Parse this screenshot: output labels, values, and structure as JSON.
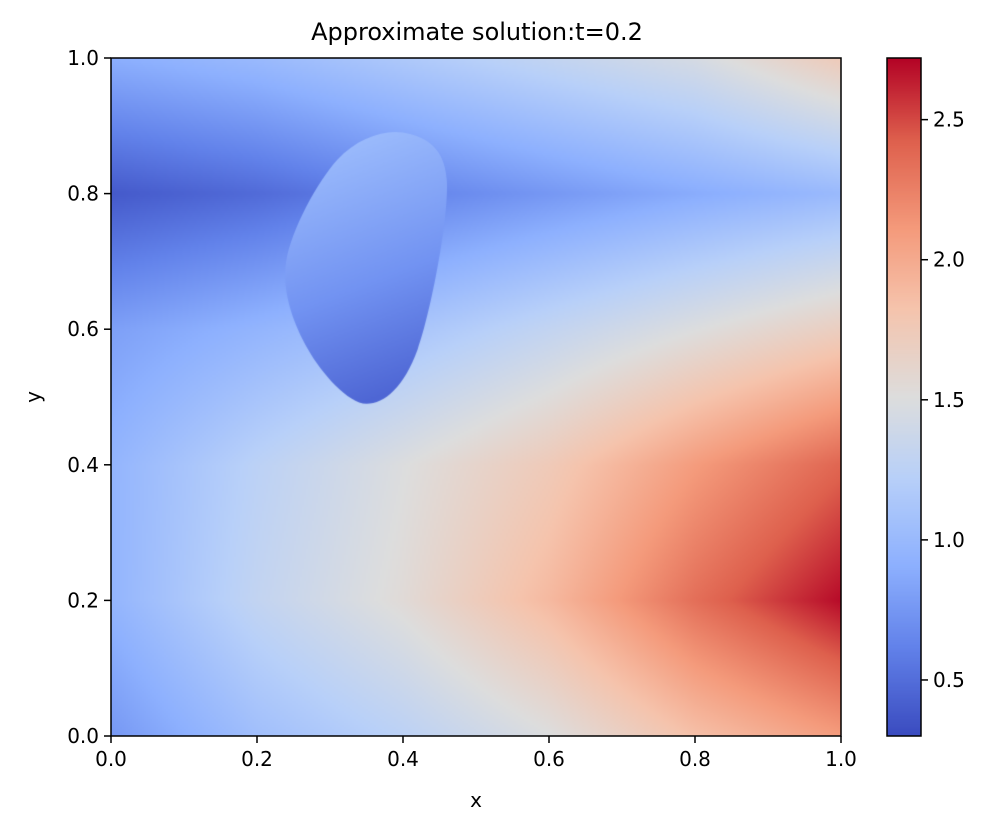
{
  "chart_data": {
    "type": "heatmap",
    "title": "Approximate solution:t=0.2",
    "xlabel": "x",
    "ylabel": "y",
    "xlim": [
      0.0,
      1.0
    ],
    "ylim": [
      0.0,
      1.0
    ],
    "x_ticks": [
      "0.0",
      "0.2",
      "0.4",
      "0.6",
      "0.8",
      "1.0"
    ],
    "y_ticks": [
      "0.0",
      "0.2",
      "0.4",
      "0.6",
      "0.8",
      "1.0"
    ],
    "colormap": "coolwarm",
    "colorbar": {
      "range": [
        0.3,
        2.72
      ],
      "ticks": [
        "0.5",
        "1.0",
        "1.5",
        "2.0",
        "2.5"
      ]
    },
    "grid": false,
    "field_samples": {
      "x": [
        0.0,
        0.2,
        0.4,
        0.6,
        0.8,
        1.0
      ],
      "y": [
        0.0,
        0.2,
        0.4,
        0.6,
        0.8,
        1.0
      ],
      "values": [
        [
          0.75,
          1.05,
          1.25,
          1.5,
          1.85,
          2.1
        ],
        [
          0.95,
          1.3,
          1.55,
          1.9,
          2.35,
          2.7
        ],
        [
          0.95,
          1.25,
          1.5,
          1.75,
          2.1,
          2.4
        ],
        [
          0.8,
          0.95,
          1.1,
          1.3,
          1.5,
          1.7
        ],
        [
          0.38,
          0.48,
          0.62,
          0.75,
          0.88,
          1.0
        ],
        [
          0.9,
          1.0,
          1.15,
          1.3,
          1.45,
          1.75
        ]
      ]
    },
    "inclusion": {
      "shape": "closed blob",
      "outline": [
        [
          0.4,
          0.89
        ],
        [
          0.46,
          0.82
        ],
        [
          0.42,
          0.57
        ],
        [
          0.35,
          0.49
        ],
        [
          0.27,
          0.57
        ],
        [
          0.24,
          0.7
        ],
        [
          0.31,
          0.85
        ]
      ],
      "value_range": [
        0.45,
        1.0
      ]
    }
  }
}
